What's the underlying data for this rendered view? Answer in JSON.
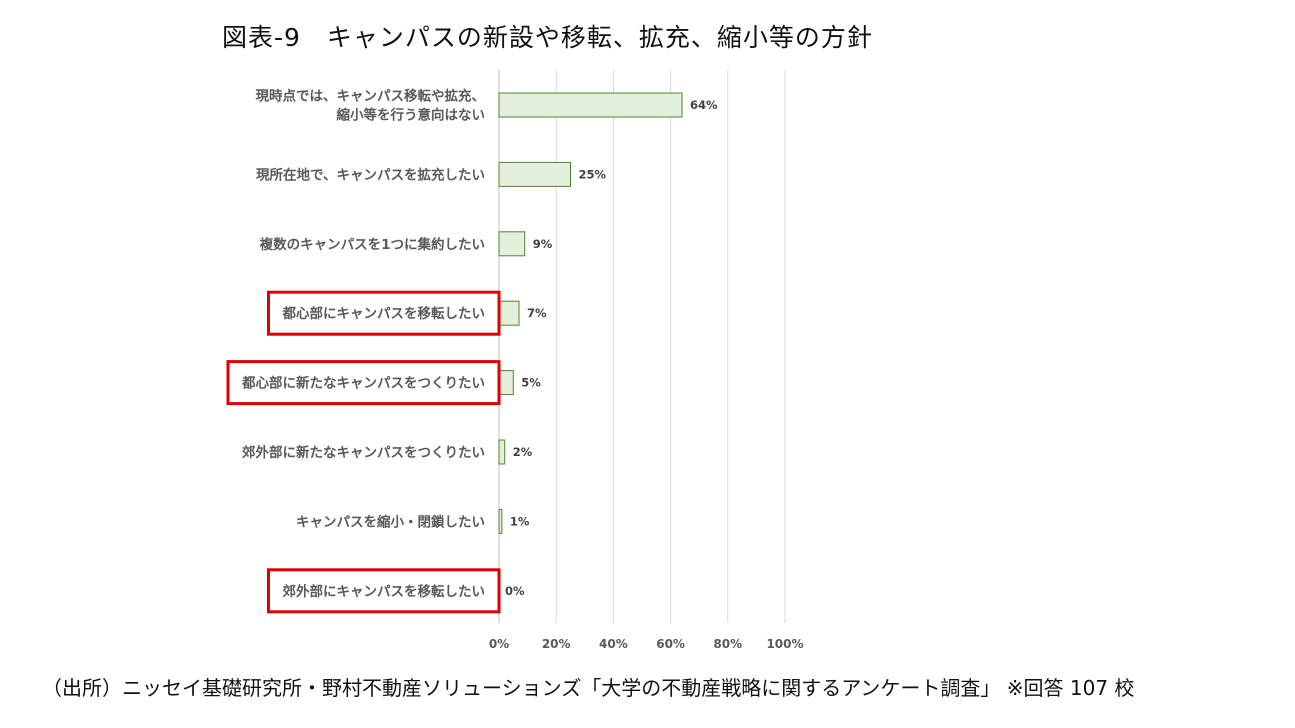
{
  "chart_data": {
    "type": "bar",
    "orientation": "horizontal",
    "title": "図表-9　キャンパスの新設や移転、拡充、縮小等の方針",
    "categories": [
      [
        "現時点では、キャンパス移転や拡充、",
        "縮小等を行う意向はない"
      ],
      [
        "現所在地で、キャンパスを拡充したい"
      ],
      [
        "複数のキャンパスを1つに集約したい"
      ],
      [
        "都心部にキャンパスを移転したい"
      ],
      [
        "都心部に新たなキャンパスをつくりたい"
      ],
      [
        "郊外部に新たなキャンパスをつくりたい"
      ],
      [
        "キャンパスを縮小・閉鎖したい"
      ],
      [
        "郊外部にキャンパスを移転したい"
      ]
    ],
    "values": [
      64,
      25,
      9,
      7,
      5,
      2,
      1,
      0
    ],
    "data_labels": [
      "64%",
      "25%",
      "9%",
      "7%",
      "5%",
      "2%",
      "1%",
      "0%"
    ],
    "highlighted": [
      false,
      false,
      false,
      true,
      true,
      false,
      false,
      true
    ],
    "xlim": [
      0,
      100
    ],
    "xticks": [
      0,
      20,
      40,
      60,
      80,
      100
    ],
    "xtick_labels": [
      "0%",
      "20%",
      "40%",
      "60%",
      "80%",
      "100%"
    ],
    "grid": true,
    "legend": false,
    "xlabel": "",
    "ylabel": ""
  },
  "source_note": "（出所）ニッセイ基礎研究所・野村不動産ソリューションズ「大学の不動産戦略に関するアンケート調査」 ※回答 107 校",
  "colors": {
    "bar_fill": "#e2efda",
    "bar_stroke": "#548235",
    "grid": "#d9d9d9",
    "highlight_box": "#e00000"
  }
}
